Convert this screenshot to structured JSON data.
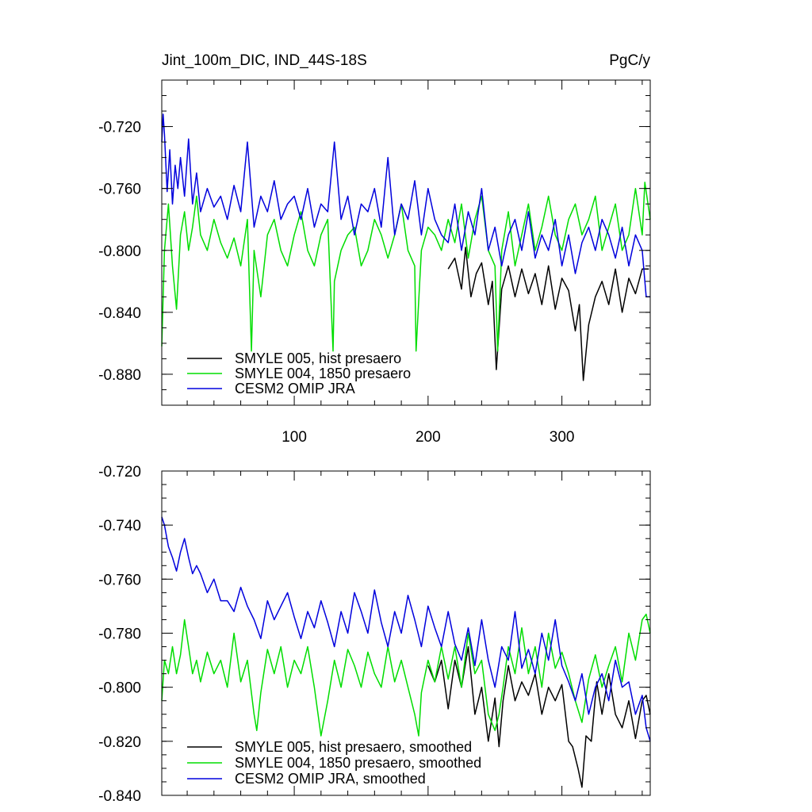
{
  "chart_data": [
    {
      "type": "line",
      "title": "Jint_100m_DIC, IND_44S-18S",
      "title_right": "PgC/y",
      "xlim": [
        1,
        366
      ],
      "ylim": [
        -0.9,
        -0.69
      ],
      "x_ticks": [
        100,
        200,
        300
      ],
      "y_ticks": [
        -0.72,
        -0.76,
        -0.8,
        -0.84,
        -0.88
      ],
      "x_tick_labels": [
        "100",
        "200",
        "300"
      ],
      "y_tick_labels": [
        "-0.720",
        "-0.760",
        "-0.800",
        "-0.840",
        "-0.880"
      ],
      "legend_position": "bottom-left",
      "series": [
        {
          "name": "SMYLE 005, hist presaero",
          "color": "#000000",
          "x": [
            215,
            220,
            225,
            228,
            232,
            236,
            240,
            245,
            248,
            251,
            255,
            260,
            265,
            270,
            275,
            280,
            285,
            290,
            295,
            300,
            305,
            310,
            313,
            316,
            320,
            325,
            330,
            335,
            340,
            345,
            350,
            355,
            360,
            365
          ],
          "values": [
            -0.812,
            -0.805,
            -0.825,
            -0.798,
            -0.83,
            -0.815,
            -0.808,
            -0.835,
            -0.82,
            -0.877,
            -0.825,
            -0.81,
            -0.83,
            -0.812,
            -0.828,
            -0.815,
            -0.835,
            -0.81,
            -0.838,
            -0.818,
            -0.826,
            -0.852,
            -0.835,
            -0.884,
            -0.848,
            -0.83,
            -0.82,
            -0.835,
            -0.812,
            -0.84,
            -0.818,
            -0.828,
            -0.812,
            -0.812
          ]
        },
        {
          "name": "SMYLE 004, 1850 presaero",
          "color": "#00dd00",
          "x": [
            1,
            3,
            6,
            9,
            12,
            15,
            18,
            21,
            24,
            27,
            30,
            35,
            40,
            45,
            50,
            55,
            60,
            65,
            68,
            70,
            75,
            80,
            85,
            90,
            95,
            100,
            105,
            110,
            115,
            120,
            125,
            129,
            130,
            135,
            140,
            145,
            150,
            155,
            160,
            165,
            170,
            175,
            180,
            185,
            190,
            191,
            195,
            200,
            205,
            210,
            215,
            220,
            225,
            230,
            235,
            240,
            245,
            250,
            252,
            255,
            260,
            265,
            270,
            275,
            280,
            285,
            290,
            295,
            300,
            305,
            310,
            315,
            320,
            325,
            330,
            335,
            340,
            345,
            350,
            355,
            360,
            362,
            366
          ],
          "values": [
            -0.862,
            -0.8,
            -0.77,
            -0.81,
            -0.838,
            -0.79,
            -0.775,
            -0.8,
            -0.785,
            -0.765,
            -0.79,
            -0.8,
            -0.78,
            -0.795,
            -0.805,
            -0.792,
            -0.81,
            -0.78,
            -0.865,
            -0.8,
            -0.83,
            -0.79,
            -0.78,
            -0.8,
            -0.81,
            -0.79,
            -0.775,
            -0.8,
            -0.81,
            -0.79,
            -0.78,
            -0.865,
            -0.82,
            -0.8,
            -0.79,
            -0.785,
            -0.81,
            -0.8,
            -0.78,
            -0.79,
            -0.805,
            -0.79,
            -0.77,
            -0.8,
            -0.81,
            -0.865,
            -0.8,
            -0.785,
            -0.79,
            -0.8,
            -0.78,
            -0.795,
            -0.77,
            -0.805,
            -0.78,
            -0.765,
            -0.8,
            -0.81,
            -0.865,
            -0.8,
            -0.775,
            -0.81,
            -0.79,
            -0.77,
            -0.8,
            -0.785,
            -0.765,
            -0.79,
            -0.8,
            -0.78,
            -0.77,
            -0.79,
            -0.78,
            -0.765,
            -0.8,
            -0.785,
            -0.77,
            -0.8,
            -0.79,
            -0.76,
            -0.79,
            -0.756,
            -0.78
          ]
        },
        {
          "name": "CESM2 OMIP JRA",
          "color": "#0000dd",
          "x": [
            1,
            2,
            3,
            5,
            7,
            9,
            11,
            13,
            15,
            18,
            21,
            24,
            27,
            30,
            35,
            40,
            45,
            50,
            55,
            60,
            65,
            70,
            75,
            80,
            85,
            90,
            95,
            100,
            105,
            110,
            115,
            120,
            125,
            130,
            135,
            140,
            145,
            150,
            155,
            160,
            165,
            170,
            175,
            180,
            185,
            190,
            195,
            200,
            205,
            210,
            215,
            220,
            225,
            230,
            235,
            240,
            245,
            250,
            255,
            260,
            265,
            270,
            275,
            280,
            285,
            290,
            295,
            300,
            305,
            310,
            315,
            320,
            325,
            330,
            335,
            340,
            345,
            350,
            355,
            360,
            363,
            366
          ],
          "values": [
            -0.73,
            -0.712,
            -0.725,
            -0.762,
            -0.735,
            -0.77,
            -0.745,
            -0.76,
            -0.74,
            -0.765,
            -0.728,
            -0.77,
            -0.75,
            -0.775,
            -0.76,
            -0.772,
            -0.765,
            -0.78,
            -0.758,
            -0.775,
            -0.73,
            -0.785,
            -0.765,
            -0.775,
            -0.755,
            -0.78,
            -0.77,
            -0.765,
            -0.78,
            -0.76,
            -0.785,
            -0.77,
            -0.775,
            -0.73,
            -0.78,
            -0.765,
            -0.79,
            -0.77,
            -0.775,
            -0.76,
            -0.785,
            -0.74,
            -0.79,
            -0.77,
            -0.78,
            -0.755,
            -0.79,
            -0.76,
            -0.78,
            -0.79,
            -0.795,
            -0.77,
            -0.8,
            -0.775,
            -0.79,
            -0.76,
            -0.8,
            -0.785,
            -0.81,
            -0.79,
            -0.78,
            -0.8,
            -0.775,
            -0.805,
            -0.79,
            -0.8,
            -0.78,
            -0.81,
            -0.79,
            -0.815,
            -0.795,
            -0.785,
            -0.8,
            -0.78,
            -0.79,
            -0.805,
            -0.785,
            -0.81,
            -0.79,
            -0.8,
            -0.83,
            -0.83
          ]
        }
      ]
    },
    {
      "type": "line",
      "title": "",
      "xlim": [
        1,
        366
      ],
      "ylim": [
        -0.84,
        -0.72
      ],
      "x_ticks": [
        100,
        200,
        300
      ],
      "y_ticks": [
        -0.72,
        -0.74,
        -0.76,
        -0.78,
        -0.8,
        -0.82,
        -0.84
      ],
      "y_tick_labels": [
        "-0.720",
        "-0.740",
        "-0.760",
        "-0.780",
        "-0.800",
        "-0.820",
        "-0.840"
      ],
      "legend_position": "bottom-left",
      "series": [
        {
          "name": "SMYLE 005, hist presaero, smoothed",
          "color": "#000000",
          "x": [
            200,
            205,
            210,
            215,
            220,
            225,
            230,
            235,
            240,
            245,
            250,
            253,
            256,
            260,
            265,
            270,
            275,
            280,
            285,
            290,
            295,
            300,
            305,
            308,
            312,
            315,
            318,
            322,
            326,
            330,
            335,
            340,
            345,
            350,
            355,
            360,
            363,
            366
          ],
          "values": [
            -0.792,
            -0.798,
            -0.79,
            -0.808,
            -0.79,
            -0.8,
            -0.785,
            -0.81,
            -0.8,
            -0.82,
            -0.804,
            -0.822,
            -0.805,
            -0.792,
            -0.805,
            -0.798,
            -0.803,
            -0.795,
            -0.81,
            -0.8,
            -0.805,
            -0.799,
            -0.82,
            -0.822,
            -0.83,
            -0.837,
            -0.818,
            -0.82,
            -0.798,
            -0.81,
            -0.795,
            -0.81,
            -0.815,
            -0.805,
            -0.819,
            -0.805,
            -0.803,
            -0.81
          ]
        },
        {
          "name": "SMYLE 004, 1850 presaero, smoothed",
          "color": "#00dd00",
          "x": [
            1,
            3,
            6,
            9,
            12,
            15,
            18,
            21,
            24,
            27,
            30,
            35,
            40,
            45,
            50,
            55,
            60,
            65,
            70,
            72,
            75,
            80,
            85,
            90,
            95,
            100,
            105,
            110,
            115,
            120,
            125,
            130,
            135,
            140,
            145,
            150,
            155,
            160,
            165,
            170,
            175,
            180,
            185,
            190,
            193,
            195,
            200,
            205,
            210,
            215,
            220,
            225,
            230,
            235,
            240,
            245,
            250,
            253,
            256,
            260,
            265,
            270,
            275,
            280,
            285,
            290,
            295,
            300,
            305,
            310,
            315,
            320,
            325,
            330,
            335,
            340,
            345,
            350,
            355,
            360,
            363,
            366
          ],
          "values": [
            -0.805,
            -0.79,
            -0.795,
            -0.785,
            -0.795,
            -0.788,
            -0.775,
            -0.785,
            -0.795,
            -0.79,
            -0.798,
            -0.787,
            -0.795,
            -0.79,
            -0.8,
            -0.78,
            -0.798,
            -0.79,
            -0.81,
            -0.816,
            -0.802,
            -0.786,
            -0.795,
            -0.785,
            -0.8,
            -0.79,
            -0.795,
            -0.785,
            -0.8,
            -0.818,
            -0.805,
            -0.79,
            -0.8,
            -0.786,
            -0.792,
            -0.8,
            -0.787,
            -0.795,
            -0.8,
            -0.785,
            -0.798,
            -0.79,
            -0.8,
            -0.81,
            -0.818,
            -0.802,
            -0.79,
            -0.798,
            -0.785,
            -0.797,
            -0.785,
            -0.8,
            -0.78,
            -0.795,
            -0.79,
            -0.81,
            -0.816,
            -0.81,
            -0.8,
            -0.785,
            -0.795,
            -0.778,
            -0.795,
            -0.785,
            -0.8,
            -0.78,
            -0.793,
            -0.787,
            -0.795,
            -0.805,
            -0.813,
            -0.797,
            -0.788,
            -0.8,
            -0.792,
            -0.785,
            -0.798,
            -0.78,
            -0.79,
            -0.775,
            -0.773,
            -0.78
          ]
        },
        {
          "name": "CESM2 OMIP JRA, smoothed",
          "color": "#0000dd",
          "x": [
            1,
            3,
            6,
            9,
            12,
            15,
            18,
            21,
            24,
            27,
            30,
            35,
            40,
            45,
            50,
            55,
            60,
            65,
            70,
            75,
            80,
            85,
            90,
            95,
            100,
            105,
            110,
            115,
            120,
            125,
            130,
            135,
            140,
            145,
            150,
            155,
            160,
            165,
            170,
            175,
            180,
            185,
            190,
            195,
            200,
            205,
            210,
            215,
            220,
            225,
            230,
            235,
            240,
            245,
            250,
            255,
            260,
            265,
            270,
            275,
            280,
            285,
            290,
            295,
            300,
            305,
            310,
            315,
            320,
            325,
            330,
            335,
            340,
            345,
            350,
            355,
            360,
            363,
            366
          ],
          "values": [
            -0.737,
            -0.74,
            -0.748,
            -0.752,
            -0.757,
            -0.75,
            -0.745,
            -0.752,
            -0.758,
            -0.755,
            -0.758,
            -0.765,
            -0.76,
            -0.768,
            -0.768,
            -0.772,
            -0.763,
            -0.77,
            -0.775,
            -0.782,
            -0.768,
            -0.775,
            -0.77,
            -0.765,
            -0.774,
            -0.782,
            -0.772,
            -0.778,
            -0.768,
            -0.776,
            -0.785,
            -0.772,
            -0.78,
            -0.765,
            -0.772,
            -0.78,
            -0.764,
            -0.776,
            -0.785,
            -0.772,
            -0.78,
            -0.766,
            -0.775,
            -0.785,
            -0.77,
            -0.778,
            -0.785,
            -0.772,
            -0.784,
            -0.79,
            -0.778,
            -0.792,
            -0.775,
            -0.79,
            -0.8,
            -0.785,
            -0.79,
            -0.772,
            -0.793,
            -0.786,
            -0.795,
            -0.78,
            -0.79,
            -0.775,
            -0.792,
            -0.798,
            -0.805,
            -0.795,
            -0.81,
            -0.8,
            -0.795,
            -0.805,
            -0.79,
            -0.8,
            -0.798,
            -0.81,
            -0.803,
            -0.815,
            -0.82
          ]
        }
      ]
    }
  ]
}
